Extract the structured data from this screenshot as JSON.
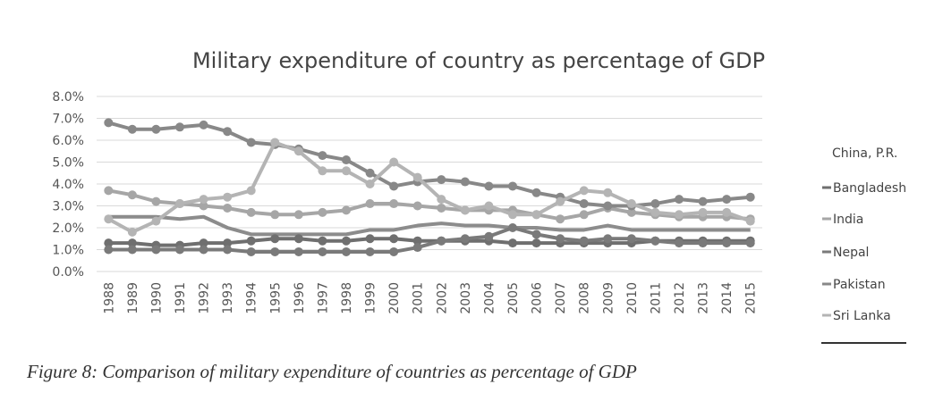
{
  "chart_data": {
    "type": "line",
    "title": "Military expenditure of country as percentage of GDP",
    "xlabel": "",
    "ylabel": "",
    "ylim": [
      0,
      8
    ],
    "y_ticks": [
      "0.0%",
      "1.0%",
      "2.0%",
      "3.0%",
      "4.0%",
      "5.0%",
      "6.0%",
      "7.0%",
      "8.0%"
    ],
    "grid": true,
    "legend_position": "right",
    "categories": [
      "1988",
      "1989",
      "1990",
      "1991",
      "1992",
      "1993",
      "1994",
      "1995",
      "1996",
      "1997",
      "1998",
      "1999",
      "2000",
      "2001",
      "2002",
      "2003",
      "2004",
      "2005",
      "2006",
      "2007",
      "2008",
      "2009",
      "2010",
      "2011",
      "2012",
      "2013",
      "2014",
      "2015"
    ],
    "series": [
      {
        "name": "China, P.R.",
        "color": "#8c8c8c",
        "marker": false,
        "values": [
          2.5,
          2.5,
          2.5,
          2.4,
          2.5,
          2.0,
          1.7,
          1.7,
          1.7,
          1.7,
          1.7,
          1.9,
          1.9,
          2.1,
          2.2,
          2.1,
          2.1,
          2.0,
          2.0,
          1.9,
          1.9,
          2.1,
          1.9,
          1.9,
          1.9,
          1.9,
          1.9,
          1.9
        ]
      },
      {
        "name": "Bangladesh",
        "color": "#6f6f6f",
        "marker": true,
        "values": [
          1.3,
          1.3,
          1.2,
          1.2,
          1.3,
          1.3,
          1.4,
          1.5,
          1.5,
          1.4,
          1.4,
          1.5,
          1.5,
          1.4,
          1.4,
          1.4,
          1.4,
          1.3,
          1.3,
          1.3,
          1.3,
          1.3,
          1.3,
          1.4,
          1.4,
          1.4,
          1.4,
          1.4
        ]
      },
      {
        "name": "India",
        "color": "#a6a6a6",
        "marker": true,
        "values": [
          3.7,
          3.5,
          3.2,
          3.1,
          3.0,
          2.9,
          2.7,
          2.6,
          2.6,
          2.7,
          2.8,
          3.1,
          3.1,
          3.0,
          2.9,
          2.8,
          2.8,
          2.8,
          2.6,
          2.4,
          2.6,
          2.9,
          2.7,
          2.6,
          2.5,
          2.5,
          2.5,
          2.4
        ]
      },
      {
        "name": "Nepal",
        "color": "#7a7a7a",
        "marker": true,
        "values": [
          1.0,
          1.0,
          1.0,
          1.0,
          1.0,
          1.0,
          0.9,
          0.9,
          0.9,
          0.9,
          0.9,
          0.9,
          0.9,
          1.1,
          1.4,
          1.5,
          1.6,
          2.0,
          1.7,
          1.5,
          1.4,
          1.5,
          1.5,
          1.4,
          1.3,
          1.3,
          1.3,
          1.3
        ]
      },
      {
        "name": "Pakistan",
        "color": "#888888",
        "marker": true,
        "values": [
          6.8,
          6.5,
          6.5,
          6.6,
          6.7,
          6.4,
          5.9,
          5.8,
          5.6,
          5.3,
          5.1,
          4.5,
          3.9,
          4.1,
          4.2,
          4.1,
          3.9,
          3.9,
          3.6,
          3.4,
          3.1,
          3.0,
          3.0,
          3.1,
          3.3,
          3.2,
          3.3,
          3.4
        ]
      },
      {
        "name": "Sri Lanka",
        "color": "#b4b4b4",
        "marker": true,
        "values": [
          2.4,
          1.8,
          2.3,
          3.1,
          3.3,
          3.4,
          3.7,
          5.9,
          5.5,
          4.6,
          4.6,
          4.0,
          5.0,
          4.3,
          3.3,
          2.8,
          3.0,
          2.6,
          2.6,
          3.2,
          3.7,
          3.6,
          3.1,
          2.7,
          2.6,
          2.7,
          2.7,
          2.3
        ]
      }
    ]
  },
  "caption": "Figure 8: Comparison of military expenditure of countries as percentage of GDP"
}
